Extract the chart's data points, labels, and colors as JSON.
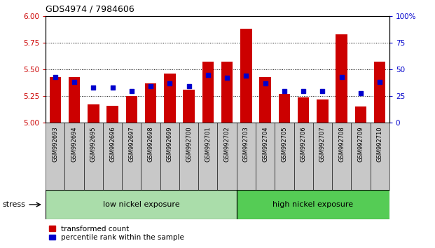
{
  "title": "GDS4974 / 7984606",
  "samples": [
    "GSM992693",
    "GSM992694",
    "GSM992695",
    "GSM992696",
    "GSM992697",
    "GSM992698",
    "GSM992699",
    "GSM992700",
    "GSM992701",
    "GSM992702",
    "GSM992703",
    "GSM992704",
    "GSM992705",
    "GSM992706",
    "GSM992707",
    "GSM992708",
    "GSM992709",
    "GSM992710"
  ],
  "red_values": [
    5.43,
    5.43,
    5.17,
    5.16,
    5.25,
    5.37,
    5.46,
    5.31,
    5.57,
    5.57,
    5.88,
    5.43,
    5.27,
    5.24,
    5.22,
    5.83,
    5.15,
    5.57
  ],
  "blue_values": [
    43,
    38,
    33,
    33,
    30,
    34,
    37,
    34,
    45,
    42,
    44,
    37,
    30,
    30,
    30,
    43,
    28,
    38
  ],
  "ymin": 5.0,
  "ymax": 6.0,
  "y2min": 0,
  "y2max": 100,
  "yticks": [
    5,
    5.25,
    5.5,
    5.75,
    6
  ],
  "y2ticks": [
    0,
    25,
    50,
    75,
    100
  ],
  "y2ticklabels": [
    "0",
    "25",
    "50",
    "75",
    "100%"
  ],
  "grid_values": [
    5.25,
    5.5,
    5.75
  ],
  "bar_color": "#cc0000",
  "dot_color": "#0000cc",
  "bar_width": 0.6,
  "low_nickel_count": 10,
  "high_nickel_count": 8,
  "group1_label": "low nickel exposure",
  "group2_label": "high nickel exposure",
  "stress_label": "stress",
  "legend_bar": "transformed count",
  "legend_dot": "percentile rank within the sample",
  "bg_plot": "#ffffff",
  "bg_xticklabel": "#c8c8c8",
  "bg_low": "#aaddaa",
  "bg_high": "#55cc55",
  "tick_color_left": "#cc0000",
  "tick_color_right": "#0000cc"
}
